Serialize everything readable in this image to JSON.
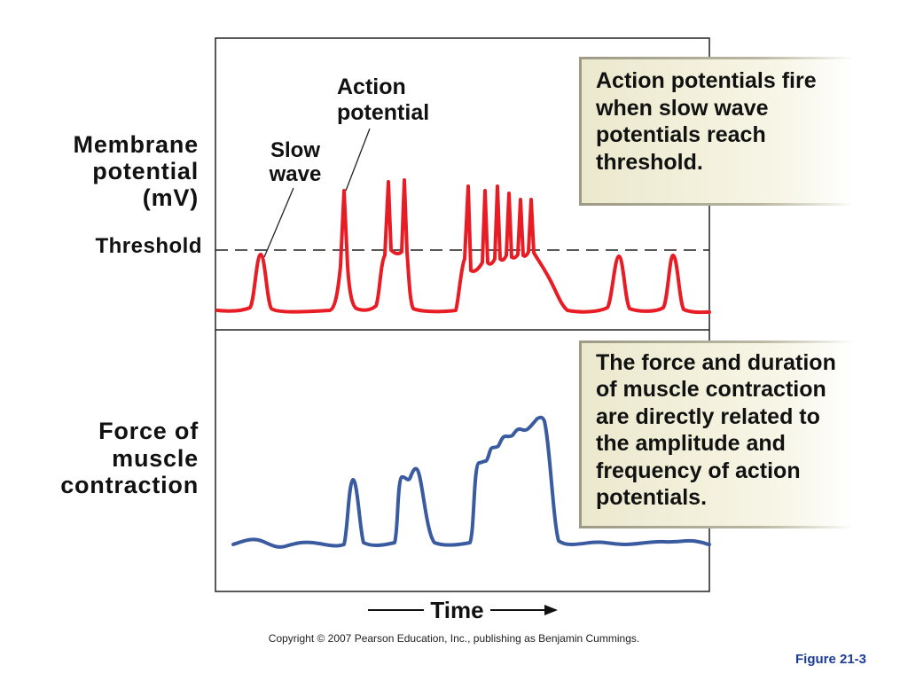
{
  "figure": {
    "membrane_label": [
      "Membrane",
      "potential",
      "(mV)"
    ],
    "threshold_label": "Threshold",
    "slow_wave_label": [
      "Slow",
      "wave"
    ],
    "action_potential_label": [
      "Action",
      "potential"
    ],
    "callout_top": [
      "Action potentials fire",
      "when slow wave",
      "potentials reach",
      "threshold."
    ],
    "force_label": [
      "Force of",
      "muscle",
      "contraction"
    ],
    "callout_bottom": [
      "The force and duration",
      "of muscle contraction",
      "are directly related to",
      "the amplitude and",
      "frequency of action",
      "potentials."
    ],
    "time_label": "Time",
    "copyright": "Copyright © 2007 Pearson Education, Inc., publishing as Benjamin Cummings.",
    "figure_number": "Figure 21-3"
  },
  "colors": {
    "membrane_trace": "#e81c24",
    "force_trace": "#3a5b9f",
    "figure_number": "#1c3c94"
  }
}
